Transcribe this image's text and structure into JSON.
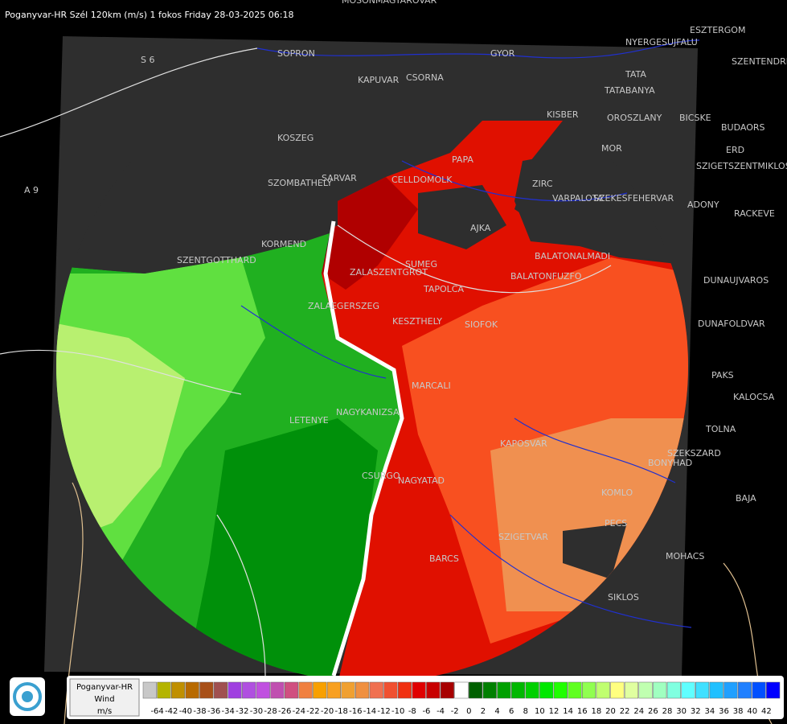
{
  "header": {
    "title": "Poganyvar-HR Szél 120km (m/s) 1 fokos Friday 28-03-2025 06:18"
  },
  "map": {
    "roads": [
      "S 6",
      "A 9"
    ],
    "cities": [
      "MOSONMAGYAROVAR",
      "SOPRON",
      "GYOR",
      "KAPUVAR",
      "CSORNA",
      "TATA",
      "TATABANYA",
      "ESZTERGOM",
      "NYERGESUJFALU",
      "SZENTENDRE",
      "KISBER",
      "OROSZLANY",
      "BICSKE",
      "BUDAORS",
      "MOR",
      "ERD",
      "KOSZEG",
      "PAPA",
      "SZIGETSZENTMIKLOS",
      "SARVAR",
      "CELLDOMOLK",
      "SZOMBATHELY",
      "ZIRC",
      "VARPALOTA",
      "SZEKESFEHERVAR",
      "ADONY",
      "RACKEVE",
      "AJKA",
      "KORMEND",
      "SZENTGOTTHARD",
      "SUMEG",
      "BALATONALMADI",
      "ZALAEGERSZEG",
      "BALATONFUZFO",
      "DUNAUJVAROS",
      "TAPOLCA",
      "ZALASZENTGROT",
      "SIOFOK",
      "KESZTHELY",
      "DUNAFOLDVAR",
      "PAKS",
      "MARCALI",
      "KALOCSA",
      "LETENYE",
      "NAGYKANIZSA",
      "TOLNA",
      "KAPOSVAR",
      "SZEKSZARD",
      "CSURGO",
      "NAGYATAD",
      "BONYHAD",
      "BAJA",
      "KOMLO",
      "BARCS",
      "SZIGETVAR",
      "PECS",
      "MOHACS",
      "SIKLOS"
    ]
  },
  "legend": {
    "station": "Poganyvar-HR",
    "quantity": "Wind",
    "unit": "m/s",
    "scale": [
      -64,
      -42,
      -40,
      -38,
      -36,
      -34,
      -32,
      -30,
      -28,
      -26,
      -24,
      -22,
      -20,
      -18,
      -16,
      -14,
      -12,
      -10,
      -8,
      -6,
      -4,
      -2,
      0,
      2,
      4,
      6,
      8,
      10,
      12,
      14,
      16,
      18,
      20,
      22,
      24,
      26,
      28,
      30,
      32,
      34,
      36,
      38,
      40,
      42
    ],
    "colors": [
      "#c8c8c8",
      "#b4b400",
      "#c09000",
      "#b86a00",
      "#a85018",
      "#a05050",
      "#a040e0",
      "#b050e0",
      "#c050e0",
      "#c050b0",
      "#d05080",
      "#f08040",
      "#f8a000",
      "#f8a020",
      "#f0a030",
      "#f09040",
      "#f07050",
      "#f05030",
      "#f03010",
      "#e00000",
      "#c80000",
      "#a80000",
      "#ffffff",
      "#006000",
      "#008000",
      "#00a000",
      "#00b800",
      "#00d000",
      "#00e800",
      "#20ff00",
      "#60ff20",
      "#90ff50",
      "#c0ff70",
      "#ffff80",
      "#e0ffa0",
      "#c0ffb0",
      "#a0ffc0",
      "#80ffe0",
      "#60ffff",
      "#40e0ff",
      "#20c0ff",
      "#20a0ff",
      "#2080ff",
      "#0050ff",
      "#0000ff"
    ]
  }
}
